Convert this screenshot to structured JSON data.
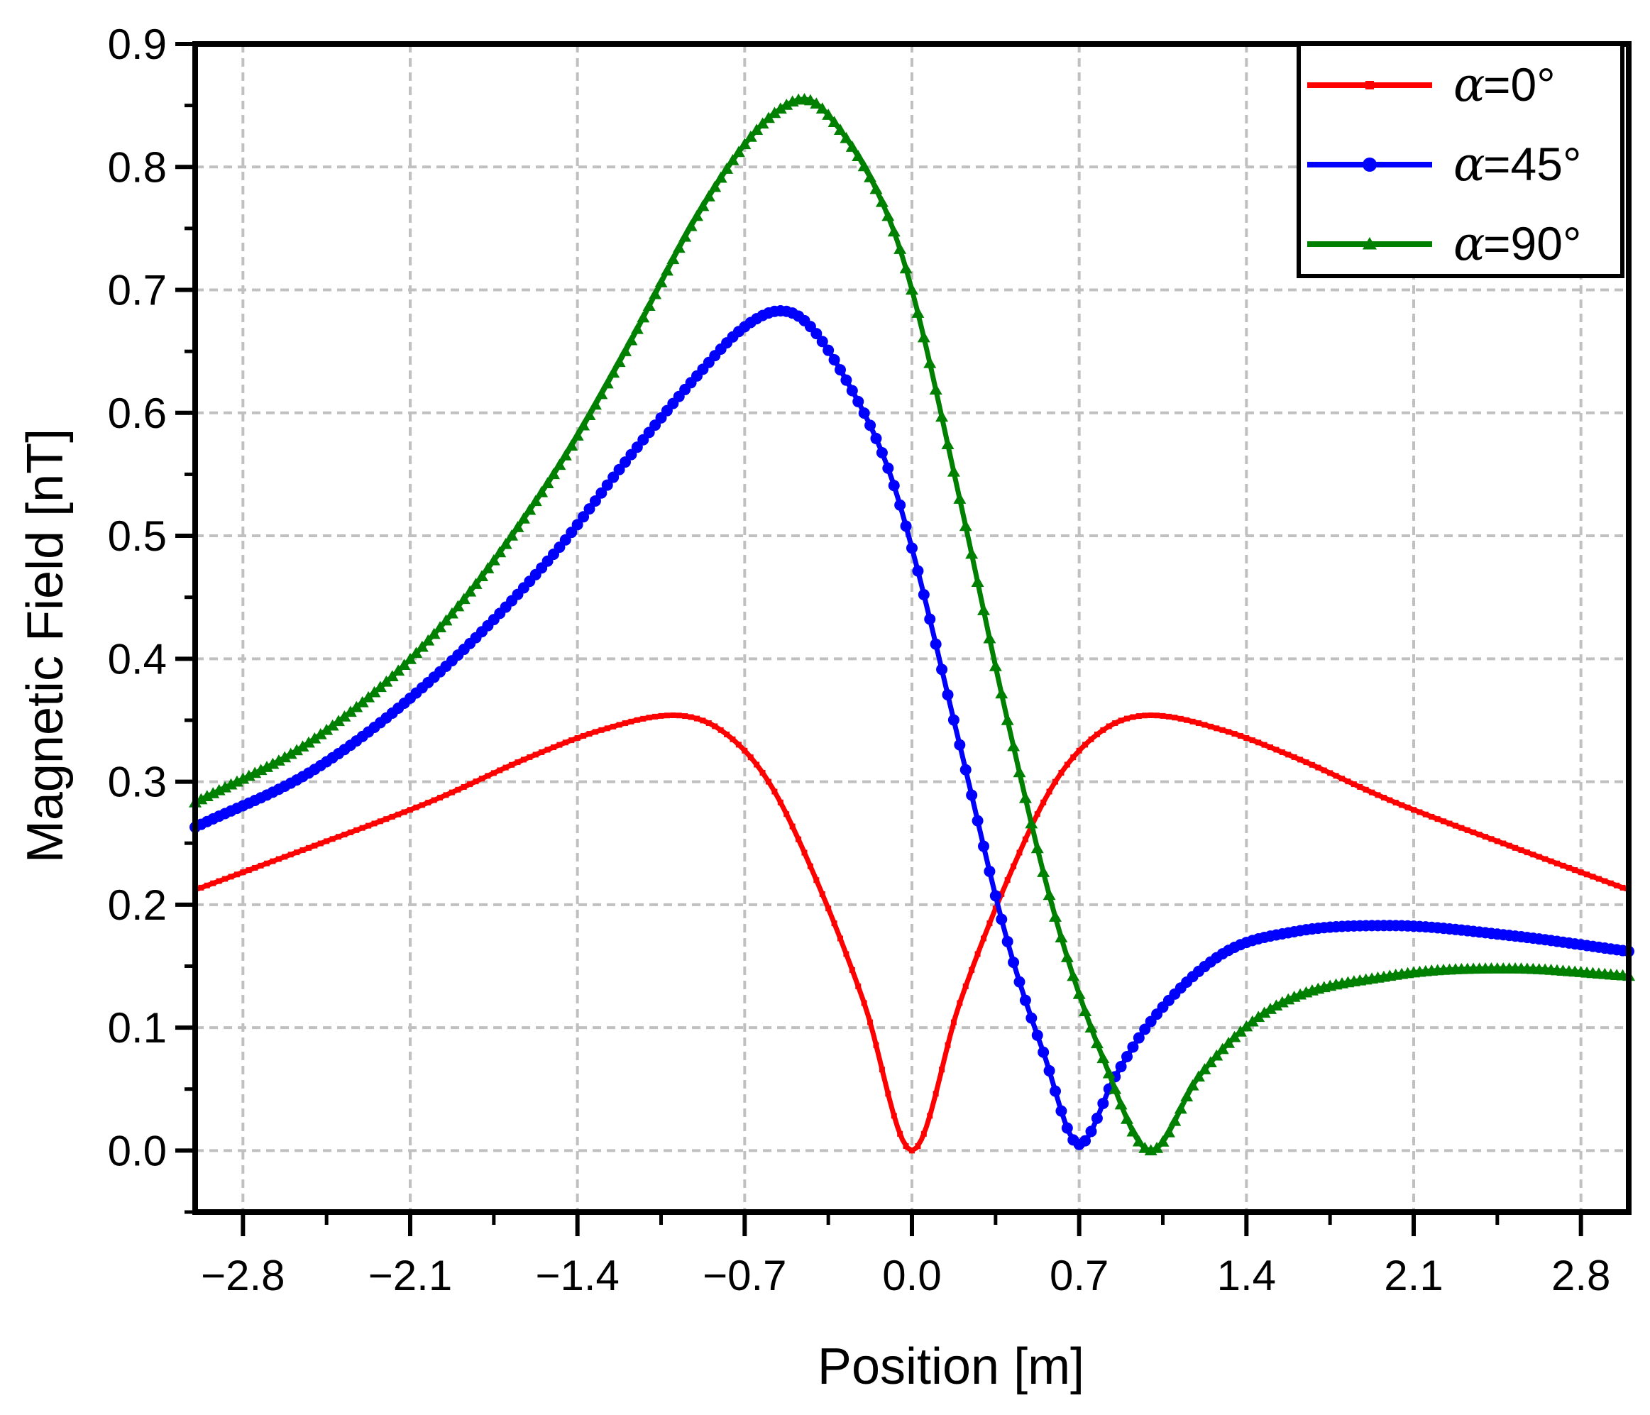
{
  "chart_data": {
    "type": "line",
    "title": "",
    "xlabel": "Position [m]",
    "ylabel": "Magnetic Field [nT]",
    "xlim": [
      -3.0,
      3.0
    ],
    "ylim": [
      -0.05,
      0.9
    ],
    "x_ticks": [
      -2.8,
      -2.1,
      -1.4,
      -0.7,
      0.0,
      0.7,
      1.4,
      2.1,
      2.8
    ],
    "x_tick_labels": [
      "−2.8",
      "−2.1",
      "−1.4",
      "−0.7",
      "0.0",
      "0.7",
      "1.4",
      "2.1",
      "2.8"
    ],
    "y_ticks": [
      0.0,
      0.1,
      0.2,
      0.3,
      0.4,
      0.5,
      0.6,
      0.7,
      0.8,
      0.9
    ],
    "y_tick_labels": [
      "0.0",
      "0.1",
      "0.2",
      "0.3",
      "0.4",
      "0.5",
      "0.6",
      "0.7",
      "0.8",
      "0.9"
    ],
    "grid": true,
    "legend_position": "top-right",
    "series": [
      {
        "name": "α =0°",
        "alpha_symbol": "α",
        "label_rest": " =0°",
        "color": "#ff0000",
        "marker": "square",
        "x": [
          -3.0,
          -2.5,
          -2.0,
          -1.6,
          -1.3,
          -1.0,
          -0.8,
          -0.6,
          -0.4,
          -0.2,
          0.0,
          0.2,
          0.4,
          0.6,
          0.8,
          1.0,
          1.3,
          1.6,
          2.0,
          2.5,
          3.0
        ],
        "values": [
          0.212,
          0.248,
          0.285,
          0.32,
          0.342,
          0.354,
          0.342,
          0.3,
          0.22,
          0.12,
          0.0,
          0.12,
          0.22,
          0.3,
          0.342,
          0.354,
          0.342,
          0.32,
          0.285,
          0.248,
          0.212
        ]
      },
      {
        "name": "α =45°",
        "alpha_symbol": "α",
        "label_rest": " =45°",
        "color": "#0000ff",
        "marker": "circle",
        "x": [
          -3.0,
          -2.5,
          -2.0,
          -1.5,
          -1.2,
          -0.9,
          -0.7,
          -0.55,
          -0.45,
          -0.3,
          -0.1,
          0.0,
          0.2,
          0.4,
          0.55,
          0.7,
          0.85,
          1.0,
          1.3,
          1.6,
          2.0,
          2.5,
          3.0
        ],
        "values": [
          0.263,
          0.31,
          0.385,
          0.485,
          0.56,
          0.63,
          0.67,
          0.683,
          0.675,
          0.635,
          0.555,
          0.49,
          0.33,
          0.17,
          0.08,
          0.005,
          0.06,
          0.105,
          0.16,
          0.178,
          0.183,
          0.175,
          0.162
        ]
      },
      {
        "name": "α =90°",
        "alpha_symbol": "α",
        "label_rest": " =90°",
        "color": "#008000",
        "marker": "triangle",
        "x": [
          -3.0,
          -2.5,
          -2.0,
          -1.5,
          -1.2,
          -0.9,
          -0.65,
          -0.5,
          -0.45,
          -0.3,
          -0.1,
          0.0,
          0.2,
          0.4,
          0.6,
          0.8,
          1.0,
          1.2,
          1.5,
          2.0,
          2.5,
          3.0
        ],
        "values": [
          0.283,
          0.335,
          0.42,
          0.55,
          0.65,
          0.76,
          0.83,
          0.853,
          0.855,
          0.83,
          0.76,
          0.7,
          0.53,
          0.35,
          0.19,
          0.075,
          0.0,
          0.06,
          0.115,
          0.142,
          0.148,
          0.142
        ]
      }
    ]
  }
}
